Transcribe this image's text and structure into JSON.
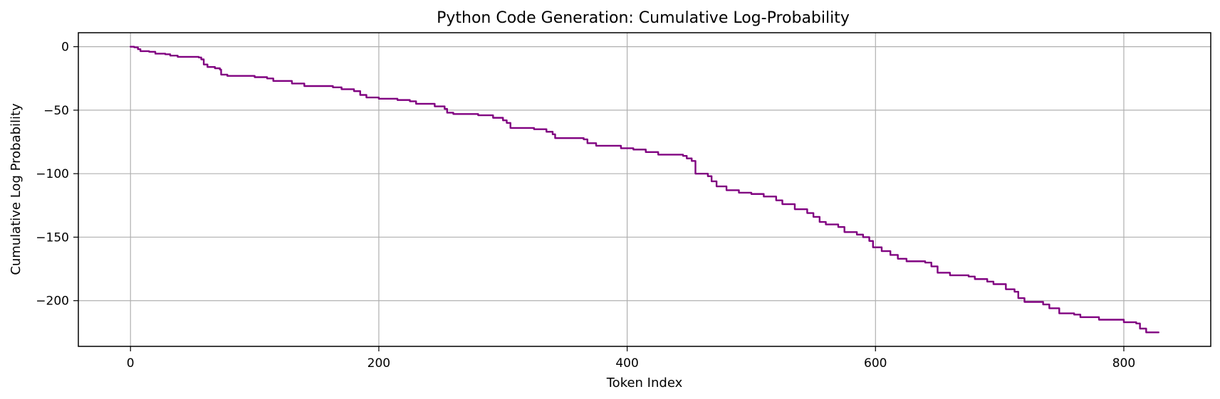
{
  "chart_data": {
    "type": "line",
    "title": "Python Code Generation: Cumulative Log-Probability",
    "xlabel": "Token Index",
    "ylabel": "Cumulative Log Probability",
    "xlim": [
      -42,
      870
    ],
    "ylim": [
      -236,
      11
    ],
    "xticks": [
      0,
      200,
      400,
      600,
      800
    ],
    "yticks": [
      0,
      -50,
      -100,
      -150,
      -200
    ],
    "grid": true,
    "color": "#800080",
    "series": [
      {
        "points": [
          [
            0,
            0
          ],
          [
            3,
            -0.5
          ],
          [
            6,
            -2
          ],
          [
            8,
            -3.5
          ],
          [
            15,
            -4
          ],
          [
            20,
            -5.5
          ],
          [
            28,
            -6
          ],
          [
            32,
            -7
          ],
          [
            38,
            -8
          ],
          [
            55,
            -8.5
          ],
          [
            57,
            -10
          ],
          [
            59,
            -14
          ],
          [
            62,
            -16
          ],
          [
            68,
            -17
          ],
          [
            72,
            -18
          ],
          [
            73,
            -22
          ],
          [
            78,
            -23
          ],
          [
            100,
            -24
          ],
          [
            110,
            -25
          ],
          [
            115,
            -27
          ],
          [
            130,
            -29
          ],
          [
            140,
            -31
          ],
          [
            163,
            -32
          ],
          [
            170,
            -33.5
          ],
          [
            180,
            -35
          ],
          [
            185,
            -38
          ],
          [
            190,
            -40
          ],
          [
            200,
            -41
          ],
          [
            215,
            -42
          ],
          [
            225,
            -43
          ],
          [
            230,
            -45
          ],
          [
            245,
            -47
          ],
          [
            253,
            -49
          ],
          [
            255,
            -52
          ],
          [
            260,
            -53
          ],
          [
            280,
            -54
          ],
          [
            292,
            -56
          ],
          [
            300,
            -58
          ],
          [
            303,
            -60
          ],
          [
            306,
            -64
          ],
          [
            325,
            -65
          ],
          [
            335,
            -67
          ],
          [
            340,
            -69
          ],
          [
            342,
            -72
          ],
          [
            365,
            -73
          ],
          [
            368,
            -76
          ],
          [
            375,
            -78
          ],
          [
            395,
            -80
          ],
          [
            405,
            -81
          ],
          [
            415,
            -83
          ],
          [
            425,
            -85
          ],
          [
            445,
            -86
          ],
          [
            448,
            -88
          ],
          [
            452,
            -90
          ],
          [
            455,
            -100
          ],
          [
            465,
            -102
          ],
          [
            468,
            -106
          ],
          [
            472,
            -110
          ],
          [
            480,
            -113
          ],
          [
            490,
            -115
          ],
          [
            500,
            -116
          ],
          [
            510,
            -118
          ],
          [
            520,
            -121
          ],
          [
            525,
            -124
          ],
          [
            535,
            -128
          ],
          [
            545,
            -131
          ],
          [
            550,
            -134
          ],
          [
            555,
            -138
          ],
          [
            560,
            -140
          ],
          [
            570,
            -142
          ],
          [
            575,
            -146
          ],
          [
            585,
            -148
          ],
          [
            590,
            -150
          ],
          [
            595,
            -153
          ],
          [
            598,
            -158
          ],
          [
            605,
            -161
          ],
          [
            612,
            -164
          ],
          [
            618,
            -167
          ],
          [
            625,
            -169
          ],
          [
            640,
            -170
          ],
          [
            645,
            -173
          ],
          [
            650,
            -178
          ],
          [
            660,
            -180
          ],
          [
            675,
            -181
          ],
          [
            680,
            -183
          ],
          [
            690,
            -185
          ],
          [
            695,
            -187
          ],
          [
            705,
            -191
          ],
          [
            712,
            -193
          ],
          [
            715,
            -198
          ],
          [
            720,
            -201
          ],
          [
            735,
            -203
          ],
          [
            740,
            -206
          ],
          [
            748,
            -210
          ],
          [
            760,
            -211
          ],
          [
            765,
            -213
          ],
          [
            780,
            -215
          ],
          [
            800,
            -217
          ],
          [
            810,
            -218
          ],
          [
            813,
            -222
          ],
          [
            818,
            -225
          ],
          [
            828,
            -225
          ]
        ]
      }
    ]
  }
}
